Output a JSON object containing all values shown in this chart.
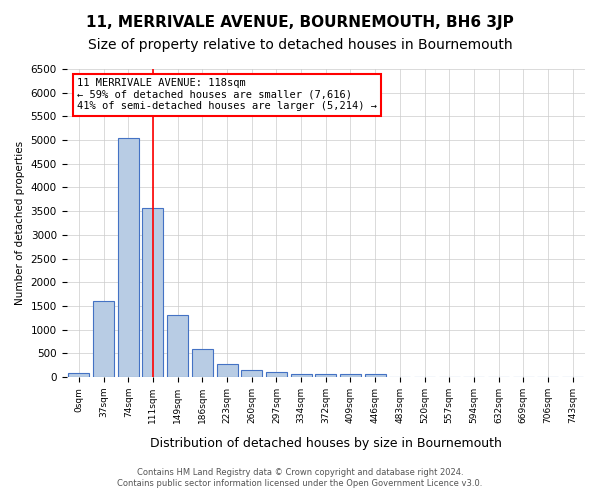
{
  "title": "11, MERRIVALE AVENUE, BOURNEMOUTH, BH6 3JP",
  "subtitle": "Size of property relative to detached houses in Bournemouth",
  "xlabel": "Distribution of detached houses by size in Bournemouth",
  "ylabel": "Number of detached properties",
  "footer_line1": "Contains HM Land Registry data © Crown copyright and database right 2024.",
  "footer_line2": "Contains public sector information licensed under the Open Government Licence v3.0.",
  "bin_labels": [
    "0sqm",
    "37sqm",
    "74sqm",
    "111sqm",
    "149sqm",
    "186sqm",
    "223sqm",
    "260sqm",
    "297sqm",
    "334sqm",
    "372sqm",
    "409sqm",
    "446sqm",
    "483sqm",
    "520sqm",
    "557sqm",
    "594sqm",
    "632sqm",
    "669sqm",
    "706sqm",
    "743sqm"
  ],
  "bar_values": [
    75,
    1600,
    5050,
    3570,
    1310,
    590,
    285,
    155,
    115,
    55,
    55,
    55,
    65,
    0,
    0,
    0,
    0,
    0,
    0,
    0,
    0
  ],
  "bar_color": "#b8cce4",
  "bar_edge_color": "#4472c4",
  "property_line_x": 3,
  "property_sqm": 118,
  "annotation_text_line1": "11 MERRIVALE AVENUE: 118sqm",
  "annotation_text_line2": "← 59% of detached houses are smaller (7,616)",
  "annotation_text_line3": "41% of semi-detached houses are larger (5,214) →",
  "annotation_box_color": "#ff0000",
  "ylim": [
    0,
    6500
  ],
  "yticks": [
    0,
    500,
    1000,
    1500,
    2000,
    2500,
    3000,
    3500,
    4000,
    4500,
    5000,
    5500,
    6000,
    6500
  ],
  "grid_color": "#cccccc",
  "background_color": "#ffffff",
  "title_fontsize": 11,
  "subtitle_fontsize": 10
}
